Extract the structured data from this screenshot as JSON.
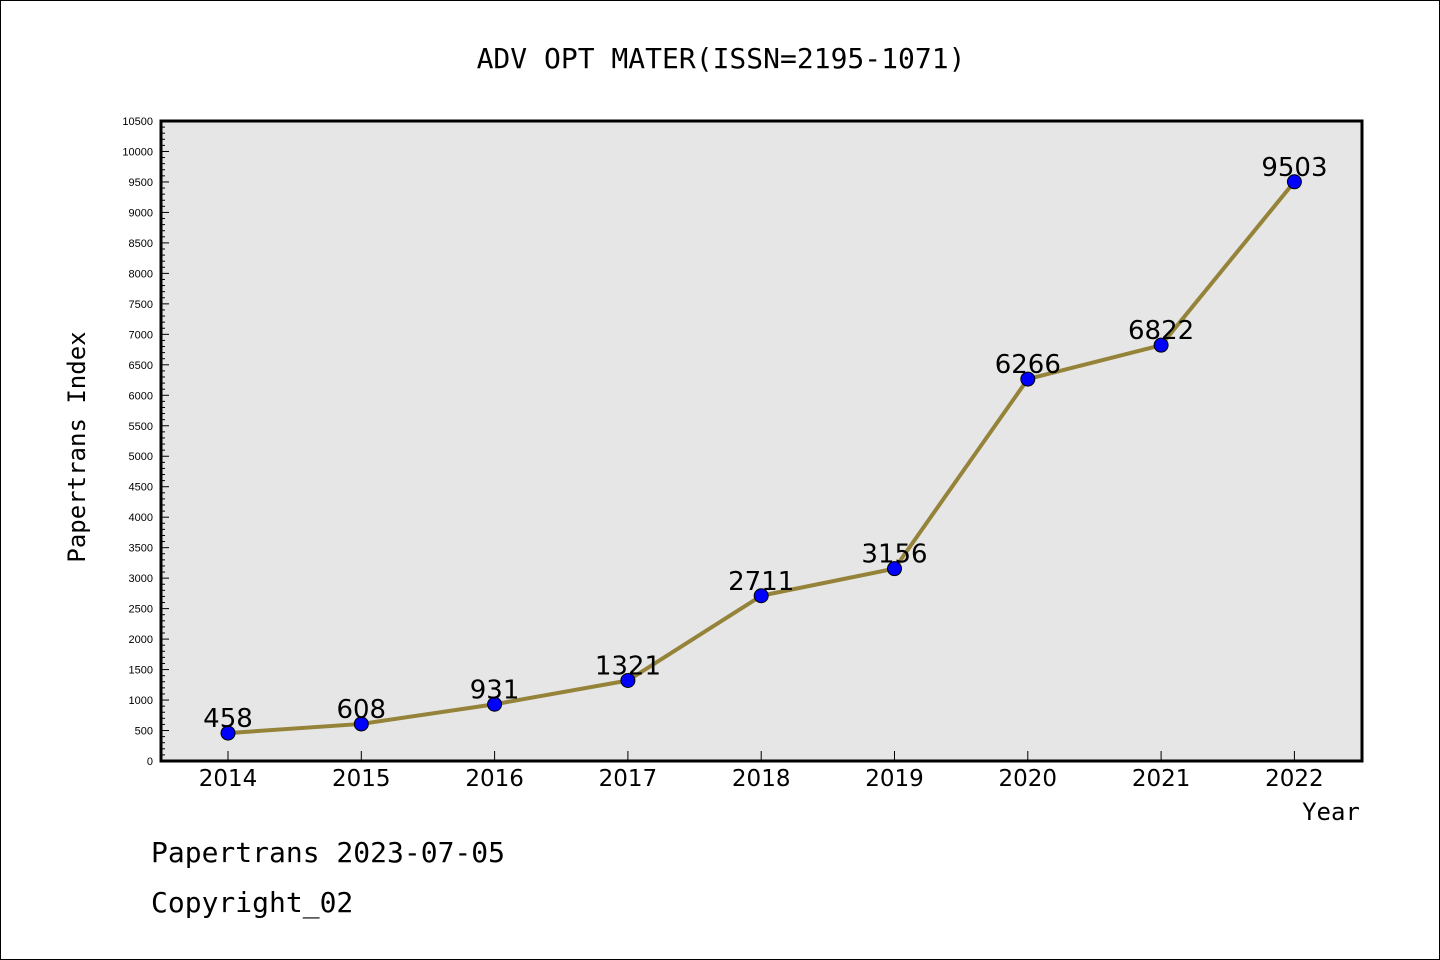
{
  "chart_data": {
    "type": "line",
    "title": "ADV OPT MATER(ISSN=2195-1071)",
    "xlabel": "Year",
    "ylabel": "Papertrans Index",
    "categories": [
      "2014",
      "2015",
      "2016",
      "2017",
      "2018",
      "2019",
      "2020",
      "2021",
      "2022"
    ],
    "series": [
      {
        "values": [
          458,
          608,
          931,
          1321,
          2711,
          3156,
          6266,
          6822,
          9503
        ]
      }
    ],
    "data_labels": [
      "458",
      "608",
      "931",
      "1321",
      "2711",
      "3156",
      "6266",
      "6822",
      "9503"
    ],
    "ylim": [
      0,
      10500
    ],
    "yticks": [
      "0",
      "500",
      "1000",
      "1500",
      "2000",
      "2500",
      "3000",
      "3500",
      "4000",
      "4500",
      "5000",
      "5500",
      "6000",
      "6500",
      "7000",
      "7500",
      "8000",
      "8500",
      "9000",
      "9500",
      "10000",
      "10500"
    ],
    "grid": false,
    "line_color": "#948339",
    "marker_color": "#0000ff",
    "plot_background": "#e6e6e6"
  },
  "footer": {
    "date_line": "Papertrans 2023-07-05",
    "copyright": "Copyright_02"
  }
}
